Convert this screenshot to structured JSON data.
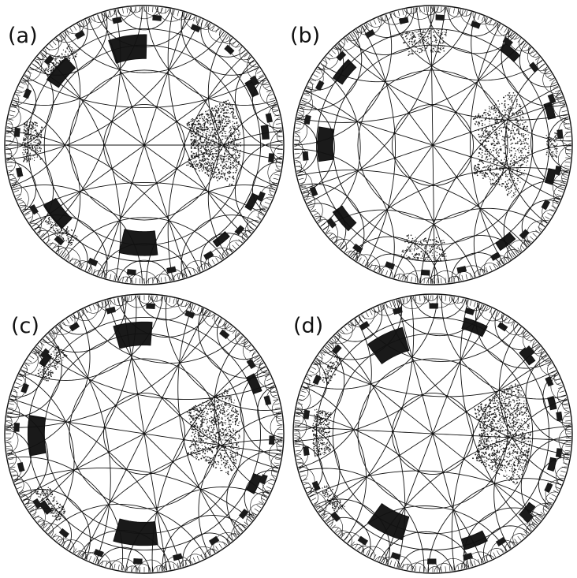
{
  "colors": {
    "ink": "#111111",
    "fill_dark": "#1a1a1a",
    "stipple": "#222222",
    "background": "#ffffff"
  },
  "panels": [
    {
      "label": "(a)"
    },
    {
      "label": "(b)"
    },
    {
      "label": "(c)"
    },
    {
      "label": "(d)"
    }
  ]
}
